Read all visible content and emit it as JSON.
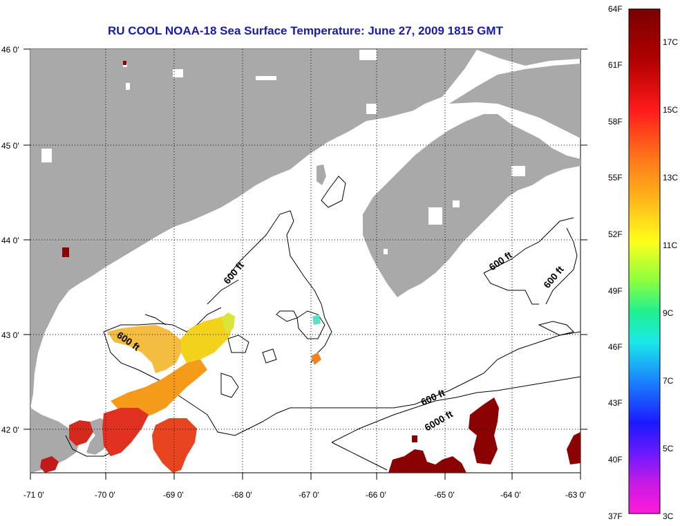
{
  "title": "RU COOL  NOAA-18  Sea Surface Temperature:  June 27, 2009 1815 GMT",
  "axes": {
    "lon_labels": [
      "-71 0'",
      "-70 0'",
      "-69 0'",
      "-68 0'",
      "-67 0'",
      "-66 0'",
      "-65 0'",
      "-64 0'",
      "-63 0'"
    ],
    "lat_labels": [
      "46 0'",
      "45 0'",
      "44 0'",
      "43 0'",
      "42 0'"
    ]
  },
  "contour_labels": [
    "600 ft",
    "600 ft",
    "600 ft",
    "600 ft",
    "600 ft",
    "6000 ft"
  ],
  "colorbar": {
    "fahrenheit_labels": [
      "64F",
      "61F",
      "58F",
      "55F",
      "52F",
      "49F",
      "46F",
      "43F",
      "40F",
      "37F"
    ],
    "celsius_labels": [
      "17C",
      "15C",
      "13C",
      "11C",
      "9C",
      "7C",
      "5C",
      "3C"
    ]
  },
  "colors": {
    "land": "#a9a9a9",
    "title": "#1a1aa6",
    "warm": "#8b0000",
    "hot": "#e8221a",
    "mid": "#f59a1a",
    "cool": "#f2e21a"
  }
}
